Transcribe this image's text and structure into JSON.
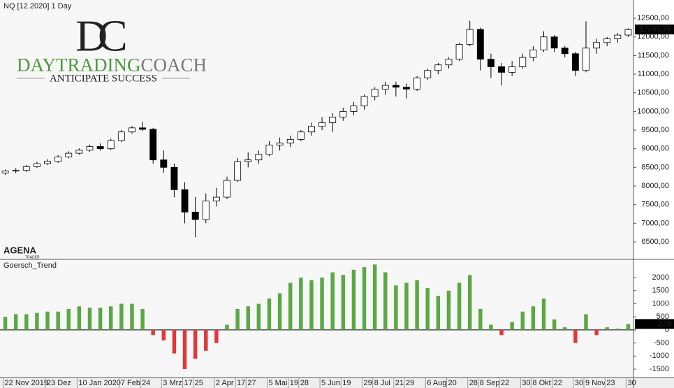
{
  "logo": {
    "monogram_d": "D",
    "monogram_c": "C",
    "brand_day": "DAYTRADING",
    "brand_coach": "COACH",
    "tagline": "ANTICIPATE SUCCESS",
    "agena": "AGENA",
    "agena_sub": "TRADER"
  },
  "chart_data": [
    {
      "type": "candlestick",
      "title": "NQ [12.2020] 1 Day",
      "categories": [
        "22 Nov 2019",
        null,
        null,
        null,
        "23 Dez",
        null,
        null,
        "10 Jan 2020",
        null,
        null,
        null,
        "7 Feb",
        null,
        "24",
        null,
        "3 Mrz",
        null,
        "17",
        "25",
        null,
        "2 Apr",
        null,
        "17",
        "27",
        null,
        "5 Mai",
        null,
        "19",
        "28",
        null,
        "5 Jun",
        null,
        "19",
        null,
        "29",
        "8 Jul",
        null,
        "21",
        "29",
        null,
        "6 Aug",
        null,
        "20",
        null,
        "28",
        "8 Sep",
        null,
        "22",
        null,
        "30",
        "8 Okt",
        null,
        "22",
        null,
        "30",
        "9 Nov",
        null,
        "23",
        null,
        "30"
      ],
      "ohlc": [
        [
          8350,
          8440,
          8300,
          8400
        ],
        [
          8400,
          8480,
          8340,
          8420
        ],
        [
          8420,
          8560,
          8380,
          8520
        ],
        [
          8520,
          8650,
          8480,
          8600
        ],
        [
          8600,
          8720,
          8560,
          8660
        ],
        [
          8660,
          8830,
          8620,
          8780
        ],
        [
          8780,
          8930,
          8740,
          8880
        ],
        [
          8880,
          9010,
          8840,
          8960
        ],
        [
          8960,
          9110,
          8920,
          9060
        ],
        [
          9060,
          9140,
          8950,
          9000
        ],
        [
          9000,
          9270,
          8960,
          9220
        ],
        [
          9220,
          9500,
          9180,
          9450
        ],
        [
          9450,
          9610,
          9400,
          9560
        ],
        [
          9560,
          9720,
          9480,
          9520
        ],
        [
          9520,
          9560,
          8600,
          8700
        ],
        [
          8700,
          8950,
          8350,
          8500
        ],
        [
          8500,
          8600,
          7700,
          7900
        ],
        [
          7900,
          8100,
          7000,
          7300
        ],
        [
          7300,
          7700,
          6630,
          7100
        ],
        [
          7100,
          7800,
          7000,
          7600
        ],
        [
          7600,
          7950,
          7450,
          7700
        ],
        [
          7700,
          8250,
          7650,
          8150
        ],
        [
          8150,
          8750,
          8100,
          8650
        ],
        [
          8650,
          8900,
          8500,
          8700
        ],
        [
          8700,
          8950,
          8600,
          8850
        ],
        [
          8850,
          9200,
          8800,
          9100
        ],
        [
          9100,
          9300,
          8950,
          9150
        ],
        [
          9150,
          9350,
          9050,
          9250
        ],
        [
          9250,
          9500,
          9200,
          9450
        ],
        [
          9450,
          9700,
          9350,
          9600
        ],
        [
          9600,
          9850,
          9500,
          9700
        ],
        [
          9700,
          9950,
          9450,
          9850
        ],
        [
          9850,
          10100,
          9750,
          10000
        ],
        [
          10000,
          10250,
          9900,
          10150
        ],
        [
          10150,
          10450,
          10050,
          10400
        ],
        [
          10400,
          10650,
          10300,
          10600
        ],
        [
          10600,
          10800,
          10450,
          10700
        ],
        [
          10700,
          10800,
          10400,
          10650
        ],
        [
          10650,
          10750,
          10350,
          10600
        ],
        [
          10600,
          10950,
          10550,
          10900
        ],
        [
          10900,
          11150,
          10850,
          11100
        ],
        [
          11100,
          11300,
          11000,
          11250
        ],
        [
          11250,
          11450,
          11150,
          11400
        ],
        [
          11400,
          11850,
          11350,
          11800
        ],
        [
          11800,
          12430,
          11750,
          12200
        ],
        [
          12200,
          12250,
          11100,
          11400
        ],
        [
          11400,
          11550,
          10900,
          11200
        ],
        [
          11200,
          11300,
          10700,
          11050
        ],
        [
          11050,
          11350,
          10950,
          11200
        ],
        [
          11200,
          11550,
          11150,
          11450
        ],
        [
          11450,
          11750,
          11350,
          11650
        ],
        [
          11650,
          12150,
          11600,
          12000
        ],
        [
          12000,
          12050,
          11600,
          11700
        ],
        [
          11700,
          11750,
          11450,
          11550
        ],
        [
          11550,
          11600,
          10950,
          11100
        ],
        [
          11100,
          12420,
          11050,
          11700
        ],
        [
          11700,
          11950,
          11550,
          11850
        ],
        [
          11850,
          12000,
          11750,
          11950
        ],
        [
          11950,
          12100,
          11850,
          12050
        ],
        [
          12050,
          12230,
          12000,
          12198.25
        ]
      ],
      "ylim": [
        6050,
        12990
      ],
      "yticks": [
        {
          "value": 6500,
          "label": "6500,00"
        },
        {
          "value": 7000,
          "label": "7000,00"
        },
        {
          "value": 7500,
          "label": "7500,00"
        },
        {
          "value": 8000,
          "label": "8000,00"
        },
        {
          "value": 8500,
          "label": "8500,00"
        },
        {
          "value": 9000,
          "label": "9000,00"
        },
        {
          "value": 9500,
          "label": "9500,00"
        },
        {
          "value": 10000,
          "label": "10000,00"
        },
        {
          "value": 10500,
          "label": "10500,00"
        },
        {
          "value": 11000,
          "label": "11000,00"
        },
        {
          "value": 11500,
          "label": "11500,00"
        },
        {
          "value": 12000,
          "label": "12000,00"
        },
        {
          "value": 12500,
          "label": "12500,00"
        }
      ],
      "last": {
        "value": 12198.25,
        "label": "12198,25"
      },
      "up_color": "#ffffff",
      "down_color": "#000000"
    },
    {
      "type": "bar",
      "title": "Goersch_Trend",
      "values": [
        500,
        600,
        600,
        650,
        700,
        700,
        800,
        900,
        850,
        850,
        900,
        1000,
        1000,
        800,
        -200,
        -400,
        -900,
        -1500,
        -1100,
        -800,
        -500,
        200,
        800,
        900,
        1000,
        1200,
        1400,
        1800,
        2000,
        1900,
        2000,
        2200,
        2100,
        2300,
        2400,
        2500,
        2200,
        1700,
        1800,
        1900,
        1600,
        1300,
        1500,
        1800,
        2100,
        800,
        200,
        -200,
        300,
        700,
        900,
        1200,
        400,
        100,
        -500,
        600,
        -200,
        100,
        50,
        226
      ],
      "ylim": [
        -1820,
        2670
      ],
      "yticks": [
        -1500,
        -1000,
        -500,
        0,
        500,
        1000,
        1500,
        2000
      ],
      "last": {
        "value": 226,
        "label": "226"
      },
      "positive_color": "#5aa843",
      "negative_color": "#e0383a"
    }
  ]
}
